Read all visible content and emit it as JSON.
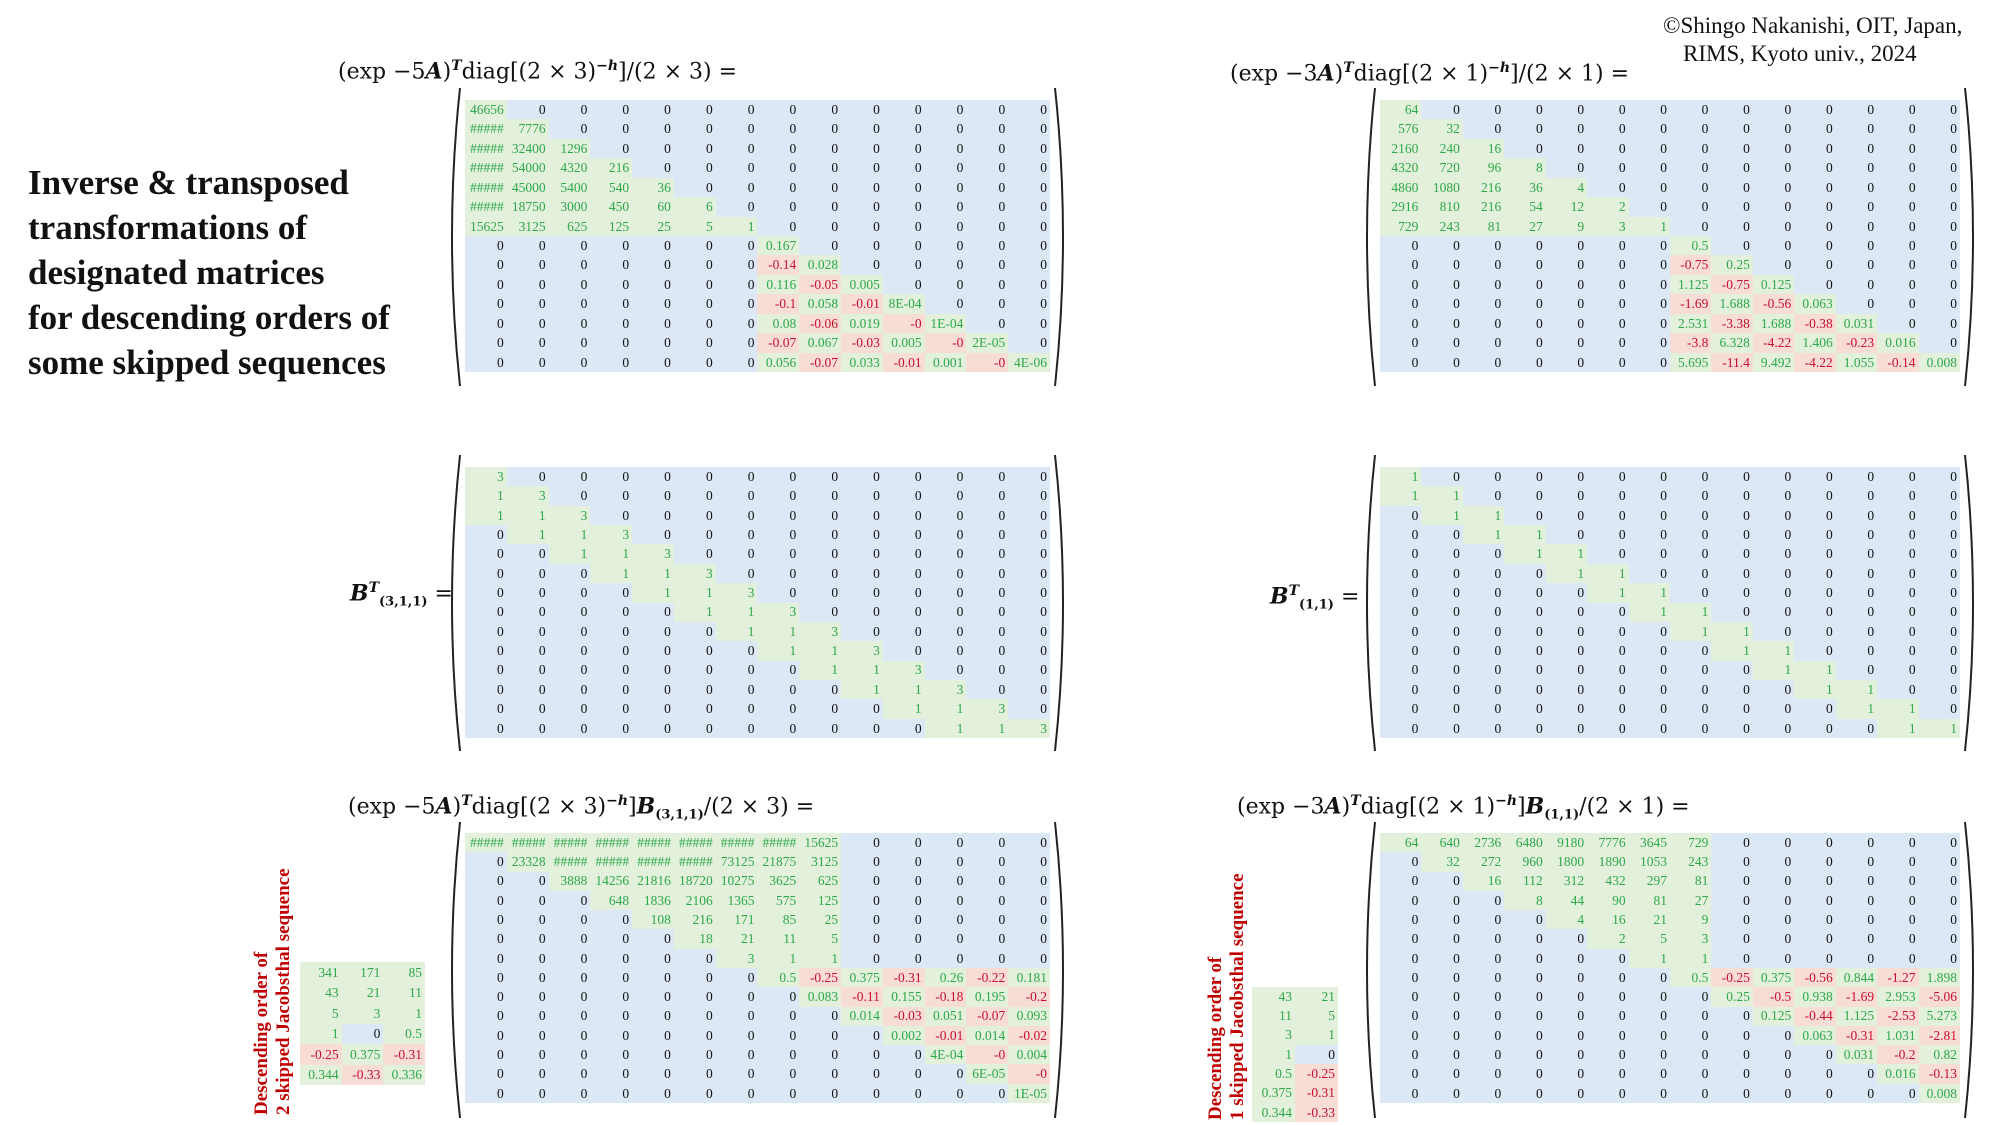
{
  "copyright": {
    "line1": "©Shingo Nakanishi, OIT, Japan,",
    "line2": "RIMS, Kyoto univ., 2024"
  },
  "heading": [
    "Inverse & transposed",
    "transformations of",
    "designated matrices",
    "for descending orders of",
    "some skipped sequences"
  ],
  "titles": {
    "top_left": {
      "pre": "(exp −5",
      "A": "A",
      "close": ")",
      "T": "T",
      "diag": "diag[(2 × 3)",
      "exp": "−h",
      "post": "]/(2 × 3) ="
    },
    "top_right": {
      "pre": "(exp −3",
      "A": "A",
      "close": ")",
      "T": "T",
      "diag": "diag[(2 × 1)",
      "exp": "−h",
      "post": "]/(2 × 1) ="
    },
    "mid_left": {
      "B": "B",
      "T": "T",
      "sub": "(3,1,1)",
      "eq": " ="
    },
    "mid_right": {
      "B": "B",
      "T": "T",
      "sub": "(1,1)",
      "eq": " ="
    },
    "bottom_left": {
      "pre": "(exp −5",
      "A": "A",
      "close": ")",
      "T": "T",
      "diag": "diag[(2 × 3)",
      "exp": "−h",
      "mid": "]",
      "B": "B",
      "sub": "(3,1,1)",
      "post": "/(2 × 3) ="
    },
    "bottom_right": {
      "pre": "(exp −3",
      "A": "A",
      "close": ")",
      "T": "T",
      "diag": "diag[(2 × 1)",
      "exp": "−h",
      "mid": "]",
      "B": "B",
      "sub": "(1,1)",
      "post": "/(2 × 1) ="
    }
  },
  "side_labels": {
    "left": [
      "Descending order of",
      "2 skipped Jacobsthal sequence"
    ],
    "right": [
      "Descending order of",
      "1 skipped Jacobsthal sequence"
    ]
  },
  "colors": {
    "zero_bg": "#dce8f6",
    "positive_bg": "#e3f1dc",
    "negative_bg": "#f7ddd6",
    "positive_text": "#2ea84a",
    "negative_text": "#c8102e"
  },
  "matrices": {
    "top_left": [
      [
        "46656",
        "0",
        "0",
        "0",
        "0",
        "0",
        "0",
        "0",
        "0",
        "0",
        "0",
        "0",
        "0",
        "0"
      ],
      [
        "#####",
        "7776",
        "0",
        "0",
        "0",
        "0",
        "0",
        "0",
        "0",
        "0",
        "0",
        "0",
        "0",
        "0"
      ],
      [
        "#####",
        "32400",
        "1296",
        "0",
        "0",
        "0",
        "0",
        "0",
        "0",
        "0",
        "0",
        "0",
        "0",
        "0"
      ],
      [
        "#####",
        "54000",
        "4320",
        "216",
        "0",
        "0",
        "0",
        "0",
        "0",
        "0",
        "0",
        "0",
        "0",
        "0"
      ],
      [
        "#####",
        "45000",
        "5400",
        "540",
        "36",
        "0",
        "0",
        "0",
        "0",
        "0",
        "0",
        "0",
        "0",
        "0"
      ],
      [
        "#####",
        "18750",
        "3000",
        "450",
        "60",
        "6",
        "0",
        "0",
        "0",
        "0",
        "0",
        "0",
        "0",
        "0"
      ],
      [
        "15625",
        "3125",
        "625",
        "125",
        "25",
        "5",
        "1",
        "0",
        "0",
        "0",
        "0",
        "0",
        "0",
        "0"
      ],
      [
        "0",
        "0",
        "0",
        "0",
        "0",
        "0",
        "0",
        "0.167",
        "0",
        "0",
        "0",
        "0",
        "0",
        "0"
      ],
      [
        "0",
        "0",
        "0",
        "0",
        "0",
        "0",
        "0",
        "-0.14",
        "0.028",
        "0",
        "0",
        "0",
        "0",
        "0"
      ],
      [
        "0",
        "0",
        "0",
        "0",
        "0",
        "0",
        "0",
        "0.116",
        "-0.05",
        "0.005",
        "0",
        "0",
        "0",
        "0"
      ],
      [
        "0",
        "0",
        "0",
        "0",
        "0",
        "0",
        "0",
        "-0.1",
        "0.058",
        "-0.01",
        "8E-04",
        "0",
        "0",
        "0"
      ],
      [
        "0",
        "0",
        "0",
        "0",
        "0",
        "0",
        "0",
        "0.08",
        "-0.06",
        "0.019",
        "-0",
        "1E-04",
        "0",
        "0"
      ],
      [
        "0",
        "0",
        "0",
        "0",
        "0",
        "0",
        "0",
        "-0.07",
        "0.067",
        "-0.03",
        "0.005",
        "-0",
        "2E-05",
        "0"
      ],
      [
        "0",
        "0",
        "0",
        "0",
        "0",
        "0",
        "0",
        "0.056",
        "-0.07",
        "0.033",
        "-0.01",
        "0.001",
        "-0",
        "4E-06"
      ]
    ],
    "top_right": [
      [
        "64",
        "0",
        "0",
        "0",
        "0",
        "0",
        "0",
        "0",
        "0",
        "0",
        "0",
        "0",
        "0",
        "0"
      ],
      [
        "576",
        "32",
        "0",
        "0",
        "0",
        "0",
        "0",
        "0",
        "0",
        "0",
        "0",
        "0",
        "0",
        "0"
      ],
      [
        "2160",
        "240",
        "16",
        "0",
        "0",
        "0",
        "0",
        "0",
        "0",
        "0",
        "0",
        "0",
        "0",
        "0"
      ],
      [
        "4320",
        "720",
        "96",
        "8",
        "0",
        "0",
        "0",
        "0",
        "0",
        "0",
        "0",
        "0",
        "0",
        "0"
      ],
      [
        "4860",
        "1080",
        "216",
        "36",
        "4",
        "0",
        "0",
        "0",
        "0",
        "0",
        "0",
        "0",
        "0",
        "0"
      ],
      [
        "2916",
        "810",
        "216",
        "54",
        "12",
        "2",
        "0",
        "0",
        "0",
        "0",
        "0",
        "0",
        "0",
        "0"
      ],
      [
        "729",
        "243",
        "81",
        "27",
        "9",
        "3",
        "1",
        "0",
        "0",
        "0",
        "0",
        "0",
        "0",
        "0"
      ],
      [
        "0",
        "0",
        "0",
        "0",
        "0",
        "0",
        "0",
        "0.5",
        "0",
        "0",
        "0",
        "0",
        "0",
        "0"
      ],
      [
        "0",
        "0",
        "0",
        "0",
        "0",
        "0",
        "0",
        "-0.75",
        "0.25",
        "0",
        "0",
        "0",
        "0",
        "0"
      ],
      [
        "0",
        "0",
        "0",
        "0",
        "0",
        "0",
        "0",
        "1.125",
        "-0.75",
        "0.125",
        "0",
        "0",
        "0",
        "0"
      ],
      [
        "0",
        "0",
        "0",
        "0",
        "0",
        "0",
        "0",
        "-1.69",
        "1.688",
        "-0.56",
        "0.063",
        "0",
        "0",
        "0"
      ],
      [
        "0",
        "0",
        "0",
        "0",
        "0",
        "0",
        "0",
        "2.531",
        "-3.38",
        "1.688",
        "-0.38",
        "0.031",
        "0",
        "0"
      ],
      [
        "0",
        "0",
        "0",
        "0",
        "0",
        "0",
        "0",
        "-3.8",
        "6.328",
        "-4.22",
        "1.406",
        "-0.23",
        "0.016",
        "0"
      ],
      [
        "0",
        "0",
        "0",
        "0",
        "0",
        "0",
        "0",
        "5.695",
        "-11.4",
        "9.492",
        "-4.22",
        "1.055",
        "-0.14",
        "0.008"
      ]
    ],
    "mid_left": [
      [
        "3",
        "0",
        "0",
        "0",
        "0",
        "0",
        "0",
        "0",
        "0",
        "0",
        "0",
        "0",
        "0",
        "0"
      ],
      [
        "1",
        "3",
        "0",
        "0",
        "0",
        "0",
        "0",
        "0",
        "0",
        "0",
        "0",
        "0",
        "0",
        "0"
      ],
      [
        "1",
        "1",
        "3",
        "0",
        "0",
        "0",
        "0",
        "0",
        "0",
        "0",
        "0",
        "0",
        "0",
        "0"
      ],
      [
        "0",
        "1",
        "1",
        "3",
        "0",
        "0",
        "0",
        "0",
        "0",
        "0",
        "0",
        "0",
        "0",
        "0"
      ],
      [
        "0",
        "0",
        "1",
        "1",
        "3",
        "0",
        "0",
        "0",
        "0",
        "0",
        "0",
        "0",
        "0",
        "0"
      ],
      [
        "0",
        "0",
        "0",
        "1",
        "1",
        "3",
        "0",
        "0",
        "0",
        "0",
        "0",
        "0",
        "0",
        "0"
      ],
      [
        "0",
        "0",
        "0",
        "0",
        "1",
        "1",
        "3",
        "0",
        "0",
        "0",
        "0",
        "0",
        "0",
        "0"
      ],
      [
        "0",
        "0",
        "0",
        "0",
        "0",
        "1",
        "1",
        "3",
        "0",
        "0",
        "0",
        "0",
        "0",
        "0"
      ],
      [
        "0",
        "0",
        "0",
        "0",
        "0",
        "0",
        "1",
        "1",
        "3",
        "0",
        "0",
        "0",
        "0",
        "0"
      ],
      [
        "0",
        "0",
        "0",
        "0",
        "0",
        "0",
        "0",
        "1",
        "1",
        "3",
        "0",
        "0",
        "0",
        "0"
      ],
      [
        "0",
        "0",
        "0",
        "0",
        "0",
        "0",
        "0",
        "0",
        "1",
        "1",
        "3",
        "0",
        "0",
        "0"
      ],
      [
        "0",
        "0",
        "0",
        "0",
        "0",
        "0",
        "0",
        "0",
        "0",
        "1",
        "1",
        "3",
        "0",
        "0"
      ],
      [
        "0",
        "0",
        "0",
        "0",
        "0",
        "0",
        "0",
        "0",
        "0",
        "0",
        "1",
        "1",
        "3",
        "0"
      ],
      [
        "0",
        "0",
        "0",
        "0",
        "0",
        "0",
        "0",
        "0",
        "0",
        "0",
        "0",
        "1",
        "1",
        "3"
      ]
    ],
    "mid_right": [
      [
        "1",
        "0",
        "0",
        "0",
        "0",
        "0",
        "0",
        "0",
        "0",
        "0",
        "0",
        "0",
        "0",
        "0"
      ],
      [
        "1",
        "1",
        "0",
        "0",
        "0",
        "0",
        "0",
        "0",
        "0",
        "0",
        "0",
        "0",
        "0",
        "0"
      ],
      [
        "0",
        "1",
        "1",
        "0",
        "0",
        "0",
        "0",
        "0",
        "0",
        "0",
        "0",
        "0",
        "0",
        "0"
      ],
      [
        "0",
        "0",
        "1",
        "1",
        "0",
        "0",
        "0",
        "0",
        "0",
        "0",
        "0",
        "0",
        "0",
        "0"
      ],
      [
        "0",
        "0",
        "0",
        "1",
        "1",
        "0",
        "0",
        "0",
        "0",
        "0",
        "0",
        "0",
        "0",
        "0"
      ],
      [
        "0",
        "0",
        "0",
        "0",
        "1",
        "1",
        "0",
        "0",
        "0",
        "0",
        "0",
        "0",
        "0",
        "0"
      ],
      [
        "0",
        "0",
        "0",
        "0",
        "0",
        "1",
        "1",
        "0",
        "0",
        "0",
        "0",
        "0",
        "0",
        "0"
      ],
      [
        "0",
        "0",
        "0",
        "0",
        "0",
        "0",
        "1",
        "1",
        "0",
        "0",
        "0",
        "0",
        "0",
        "0"
      ],
      [
        "0",
        "0",
        "0",
        "0",
        "0",
        "0",
        "0",
        "1",
        "1",
        "0",
        "0",
        "0",
        "0",
        "0"
      ],
      [
        "0",
        "0",
        "0",
        "0",
        "0",
        "0",
        "0",
        "0",
        "1",
        "1",
        "0",
        "0",
        "0",
        "0"
      ],
      [
        "0",
        "0",
        "0",
        "0",
        "0",
        "0",
        "0",
        "0",
        "0",
        "1",
        "1",
        "0",
        "0",
        "0"
      ],
      [
        "0",
        "0",
        "0",
        "0",
        "0",
        "0",
        "0",
        "0",
        "0",
        "0",
        "1",
        "1",
        "0",
        "0"
      ],
      [
        "0",
        "0",
        "0",
        "0",
        "0",
        "0",
        "0",
        "0",
        "0",
        "0",
        "0",
        "1",
        "1",
        "0"
      ],
      [
        "0",
        "0",
        "0",
        "0",
        "0",
        "0",
        "0",
        "0",
        "0",
        "0",
        "0",
        "0",
        "1",
        "1"
      ]
    ],
    "bottom_left": [
      [
        "#####",
        "#####",
        "#####",
        "#####",
        "#####",
        "#####",
        "#####",
        "#####",
        "15625",
        "0",
        "0",
        "0",
        "0",
        "0"
      ],
      [
        "0",
        "23328",
        "#####",
        "#####",
        "#####",
        "#####",
        "73125",
        "21875",
        "3125",
        "0",
        "0",
        "0",
        "0",
        "0"
      ],
      [
        "0",
        "0",
        "3888",
        "14256",
        "21816",
        "18720",
        "10275",
        "3625",
        "625",
        "0",
        "0",
        "0",
        "0",
        "0"
      ],
      [
        "0",
        "0",
        "0",
        "648",
        "1836",
        "2106",
        "1365",
        "575",
        "125",
        "0",
        "0",
        "0",
        "0",
        "0"
      ],
      [
        "0",
        "0",
        "0",
        "0",
        "108",
        "216",
        "171",
        "85",
        "25",
        "0",
        "0",
        "0",
        "0",
        "0"
      ],
      [
        "0",
        "0",
        "0",
        "0",
        "0",
        "18",
        "21",
        "11",
        "5",
        "0",
        "0",
        "0",
        "0",
        "0"
      ],
      [
        "0",
        "0",
        "0",
        "0",
        "0",
        "0",
        "3",
        "1",
        "1",
        "0",
        "0",
        "0",
        "0",
        "0"
      ],
      [
        "0",
        "0",
        "0",
        "0",
        "0",
        "0",
        "0",
        "0.5",
        "-0.25",
        "0.375",
        "-0.31",
        "0.26",
        "-0.22",
        "0.181"
      ],
      [
        "0",
        "0",
        "0",
        "0",
        "0",
        "0",
        "0",
        "0",
        "0.083",
        "-0.11",
        "0.155",
        "-0.18",
        "0.195",
        "-0.2"
      ],
      [
        "0",
        "0",
        "0",
        "0",
        "0",
        "0",
        "0",
        "0",
        "0",
        "0.014",
        "-0.03",
        "0.051",
        "-0.07",
        "0.093"
      ],
      [
        "0",
        "0",
        "0",
        "0",
        "0",
        "0",
        "0",
        "0",
        "0",
        "0",
        "0.002",
        "-0.01",
        "0.014",
        "-0.02"
      ],
      [
        "0",
        "0",
        "0",
        "0",
        "0",
        "0",
        "0",
        "0",
        "0",
        "0",
        "0",
        "4E-04",
        "-0",
        "0.004"
      ],
      [
        "0",
        "0",
        "0",
        "0",
        "0",
        "0",
        "0",
        "0",
        "0",
        "0",
        "0",
        "0",
        "6E-05",
        "-0"
      ],
      [
        "0",
        "0",
        "0",
        "0",
        "0",
        "0",
        "0",
        "0",
        "0",
        "0",
        "0",
        "0",
        "0",
        "1E-05"
      ]
    ],
    "bottom_right": [
      [
        "64",
        "640",
        "2736",
        "6480",
        "9180",
        "7776",
        "3645",
        "729",
        "0",
        "0",
        "0",
        "0",
        "0",
        "0"
      ],
      [
        "0",
        "32",
        "272",
        "960",
        "1800",
        "1890",
        "1053",
        "243",
        "0",
        "0",
        "0",
        "0",
        "0",
        "0"
      ],
      [
        "0",
        "0",
        "16",
        "112",
        "312",
        "432",
        "297",
        "81",
        "0",
        "0",
        "0",
        "0",
        "0",
        "0"
      ],
      [
        "0",
        "0",
        "0",
        "8",
        "44",
        "90",
        "81",
        "27",
        "0",
        "0",
        "0",
        "0",
        "0",
        "0"
      ],
      [
        "0",
        "0",
        "0",
        "0",
        "4",
        "16",
        "21",
        "9",
        "0",
        "0",
        "0",
        "0",
        "0",
        "0"
      ],
      [
        "0",
        "0",
        "0",
        "0",
        "0",
        "2",
        "5",
        "3",
        "0",
        "0",
        "0",
        "0",
        "0",
        "0"
      ],
      [
        "0",
        "0",
        "0",
        "0",
        "0",
        "0",
        "1",
        "1",
        "0",
        "0",
        "0",
        "0",
        "0",
        "0"
      ],
      [
        "0",
        "0",
        "0",
        "0",
        "0",
        "0",
        "0",
        "0.5",
        "-0.25",
        "0.375",
        "-0.56",
        "0.844",
        "-1.27",
        "1.898"
      ],
      [
        "0",
        "0",
        "0",
        "0",
        "0",
        "0",
        "0",
        "0",
        "0.25",
        "-0.5",
        "0.938",
        "-1.69",
        "2.953",
        "-5.06"
      ],
      [
        "0",
        "0",
        "0",
        "0",
        "0",
        "0",
        "0",
        "0",
        "0",
        "0.125",
        "-0.44",
        "1.125",
        "-2.53",
        "5.273"
      ],
      [
        "0",
        "0",
        "0",
        "0",
        "0",
        "0",
        "0",
        "0",
        "0",
        "0",
        "0.063",
        "-0.31",
        "1.031",
        "-2.81"
      ],
      [
        "0",
        "0",
        "0",
        "0",
        "0",
        "0",
        "0",
        "0",
        "0",
        "0",
        "0",
        "0.031",
        "-0.2",
        "0.82"
      ],
      [
        "0",
        "0",
        "0",
        "0",
        "0",
        "0",
        "0",
        "0",
        "0",
        "0",
        "0",
        "0",
        "0.016",
        "-0.13"
      ],
      [
        "0",
        "0",
        "0",
        "0",
        "0",
        "0",
        "0",
        "0",
        "0",
        "0",
        "0",
        "0",
        "0",
        "0.008"
      ]
    ]
  },
  "vectors": {
    "left": [
      [
        "341",
        "171",
        "85"
      ],
      [
        "43",
        "21",
        "11"
      ],
      [
        "5",
        "3",
        "1"
      ],
      [
        "1",
        "0",
        "0.5"
      ],
      [
        "-0.25",
        "0.375",
        "-0.31"
      ],
      [
        "0.344",
        "-0.33",
        "0.336"
      ]
    ],
    "right": [
      [
        "43",
        "21"
      ],
      [
        "11",
        "5"
      ],
      [
        "3",
        "1"
      ],
      [
        "1",
        "0"
      ],
      [
        "0.5",
        "-0.25"
      ],
      [
        "0.375",
        "-0.31"
      ],
      [
        "0.344",
        "-0.33"
      ]
    ]
  }
}
